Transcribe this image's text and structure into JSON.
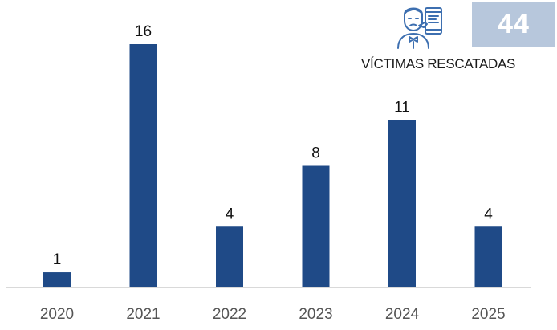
{
  "chart_data": {
    "type": "bar",
    "categories": [
      "2020",
      "2021",
      "2022",
      "2023",
      "2024",
      "2025"
    ],
    "values": [
      1,
      16,
      4,
      8,
      11,
      4
    ],
    "ylim": [
      0,
      16
    ],
    "grid": false,
    "title": "",
    "xlabel": "",
    "ylabel": ""
  },
  "summary": {
    "value": "44",
    "label": "VÍCTIMAS RESCATADAS",
    "icon": "victim-icon"
  },
  "colors": {
    "bar": "#1f4a87",
    "badge_bg": "#b7c7dc",
    "icon_stroke": "#3d6fb0",
    "axis": "#d9d9d9",
    "tick_text": "#555555",
    "label_text": "#111111"
  }
}
